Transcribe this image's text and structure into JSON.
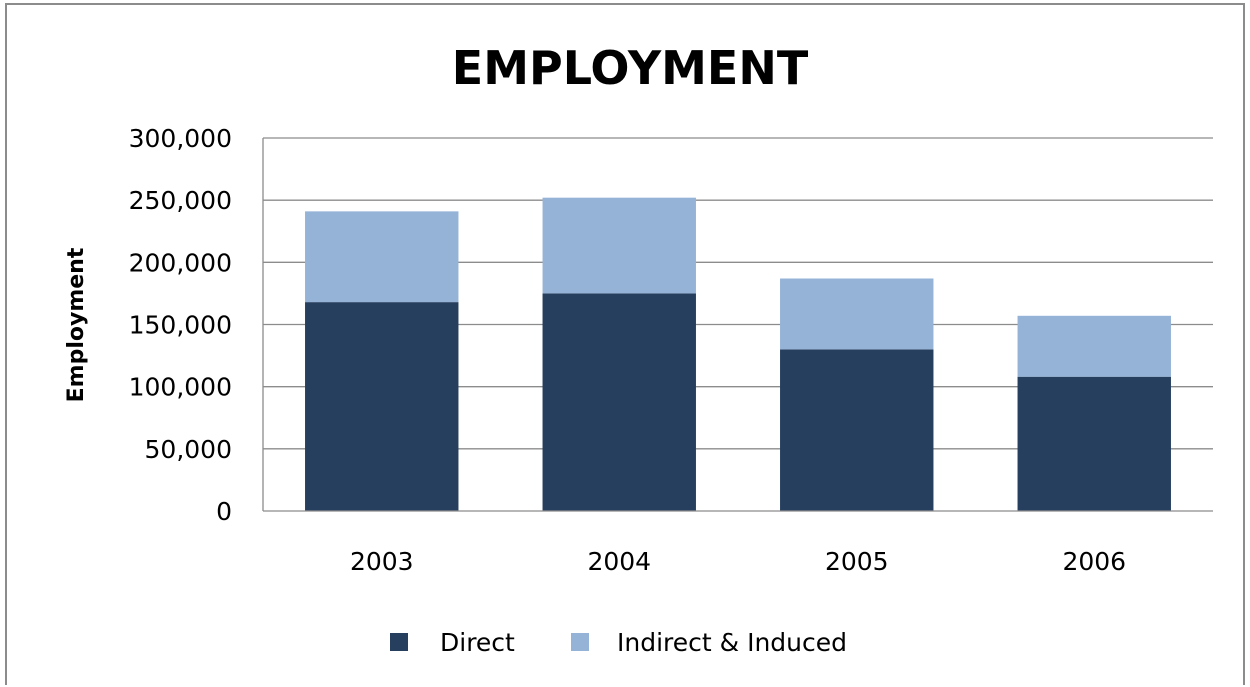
{
  "chart_data": {
    "type": "bar",
    "stacked": true,
    "title": "EMPLOYMENT",
    "xlabel": "",
    "ylabel": "Employment",
    "categories": [
      "2003",
      "2004",
      "2005",
      "2006"
    ],
    "series": [
      {
        "name": "Direct",
        "values": [
          168000,
          175000,
          130000,
          108000
        ],
        "color": "#263f5f"
      },
      {
        "name": "Indirect & Induced",
        "values": [
          73000,
          77000,
          57000,
          49000
        ],
        "color": "#95b3d7"
      }
    ],
    "ylim": [
      0,
      300000
    ],
    "yticks": [
      0,
      50000,
      100000,
      150000,
      200000,
      250000,
      300000
    ],
    "ytick_labels": [
      "0",
      "50,000",
      "100,000",
      "150,000",
      "200,000",
      "250,000",
      "300,000"
    ],
    "grid": true,
    "legend": "bottom"
  }
}
